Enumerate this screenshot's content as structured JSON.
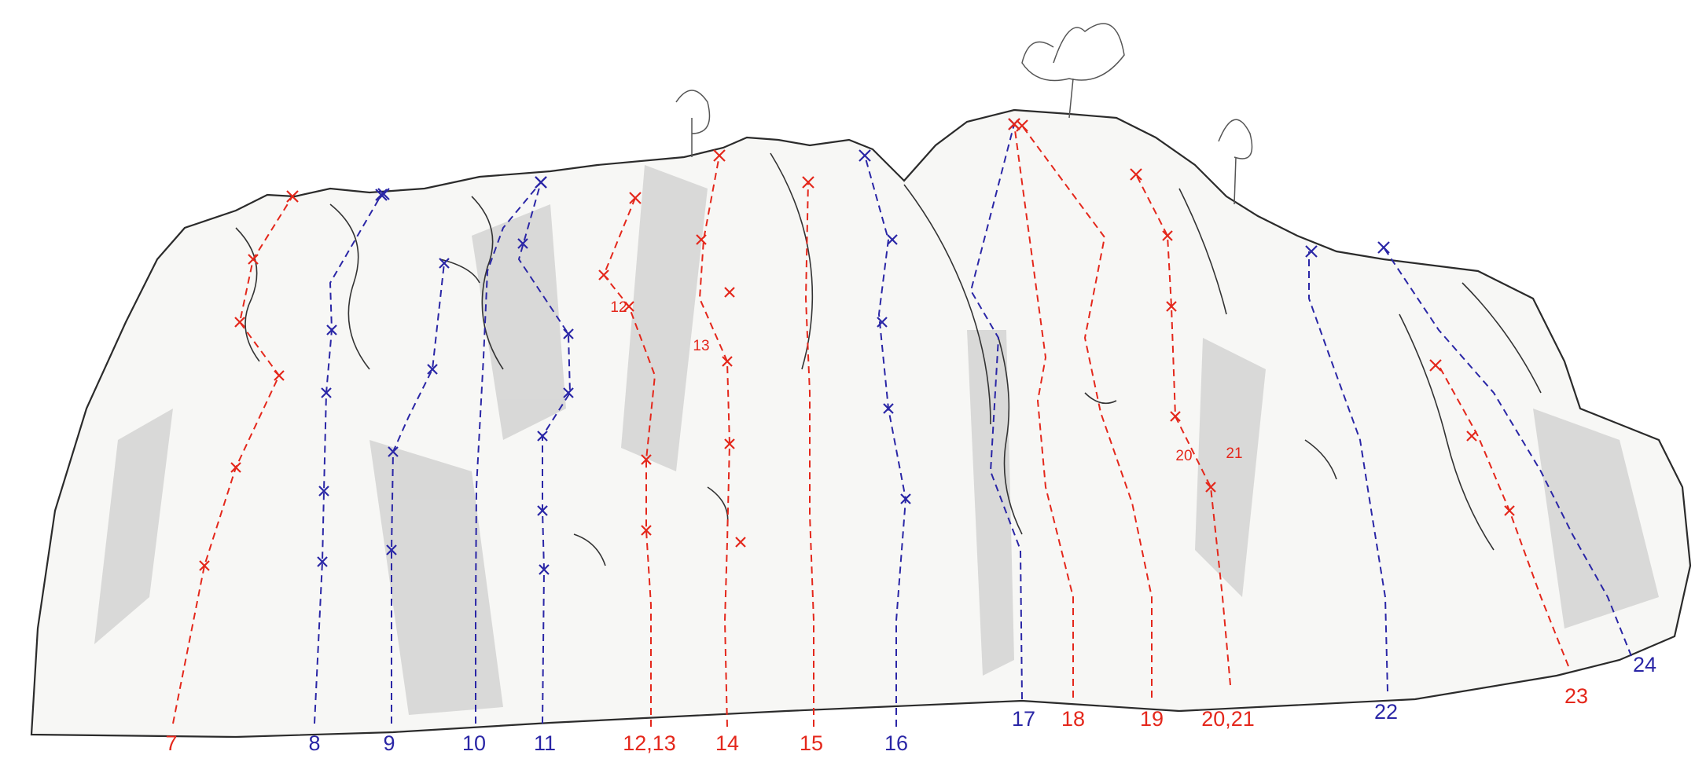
{
  "colors": {
    "red": "#e4271b",
    "blue": "#2a26a6"
  },
  "routes": [
    {
      "label": "7",
      "color": "red"
    },
    {
      "label": "8",
      "color": "blue"
    },
    {
      "label": "9",
      "color": "blue"
    },
    {
      "label": "10",
      "color": "blue"
    },
    {
      "label": "11",
      "color": "blue"
    },
    {
      "label": "12,13",
      "color": "red"
    },
    {
      "label": "14",
      "color": "red"
    },
    {
      "label": "15",
      "color": "red"
    },
    {
      "label": "16",
      "color": "blue"
    },
    {
      "label": "17",
      "color": "blue"
    },
    {
      "label": "18",
      "color": "red"
    },
    {
      "label": "19",
      "color": "red"
    },
    {
      "label": "20,21",
      "color": "red"
    },
    {
      "label": "22",
      "color": "blue"
    },
    {
      "label": "23",
      "color": "red"
    },
    {
      "label": "24",
      "color": "blue"
    }
  ],
  "inline_labels": [
    {
      "text": "12",
      "color": "red"
    },
    {
      "text": "13",
      "color": "red"
    },
    {
      "text": "20",
      "color": "red"
    },
    {
      "text": "21",
      "color": "red"
    }
  ]
}
